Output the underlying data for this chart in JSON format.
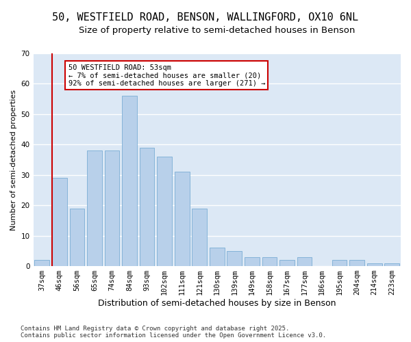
{
  "title": "50, WESTFIELD ROAD, BENSON, WALLINGFORD, OX10 6NL",
  "subtitle": "Size of property relative to semi-detached houses in Benson",
  "xlabel": "Distribution of semi-detached houses by size in Benson",
  "ylabel": "Number of semi-detached properties",
  "categories": [
    "37sqm",
    "46sqm",
    "56sqm",
    "65sqm",
    "74sqm",
    "84sqm",
    "93sqm",
    "102sqm",
    "111sqm",
    "121sqm",
    "130sqm",
    "139sqm",
    "149sqm",
    "158sqm",
    "167sqm",
    "177sqm",
    "186sqm",
    "195sqm",
    "204sqm",
    "214sqm",
    "223sqm"
  ],
  "values": [
    2,
    29,
    19,
    38,
    38,
    56,
    39,
    36,
    31,
    19,
    6,
    5,
    3,
    3,
    2,
    3,
    0,
    2,
    2,
    1,
    1
  ],
  "bar_color": "#b8d0ea",
  "bar_edge_color": "#7aadd4",
  "background_color": "#dce8f5",
  "grid_color": "#ffffff",
  "vline_x_index": 1,
  "vline_color": "#cc0000",
  "annotation_text": "50 WESTFIELD ROAD: 53sqm\n← 7% of semi-detached houses are smaller (20)\n92% of semi-detached houses are larger (271) →",
  "annotation_box_color": "#ffffff",
  "annotation_box_edge": "#cc0000",
  "footer": "Contains HM Land Registry data © Crown copyright and database right 2025.\nContains public sector information licensed under the Open Government Licence v3.0.",
  "ylim": [
    0,
    70
  ],
  "yticks": [
    0,
    10,
    20,
    30,
    40,
    50,
    60,
    70
  ],
  "title_fontsize": 11,
  "subtitle_fontsize": 9.5,
  "xlabel_fontsize": 9,
  "ylabel_fontsize": 8,
  "tick_fontsize": 7.5,
  "footer_fontsize": 6.5,
  "annotation_fontsize": 7.5
}
